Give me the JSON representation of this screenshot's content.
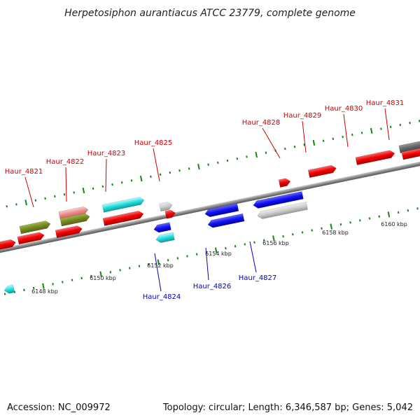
{
  "title": "Herpetosiphon aurantiacus ATCC 23779, complete genome",
  "footer": {
    "accession": "Accession: NC_009972",
    "summary": "Topology: circular; Length: 6,346,587 bp; Genes: 5,042"
  },
  "colors": {
    "forward_label": "#cc0000",
    "reverse_label": "#0000bb",
    "tick": "#118811",
    "backbone": "#888888"
  },
  "scale_labels": [
    "6148 kbp",
    "6150 kbp",
    "6152 kbp",
    "6154 kbp",
    "6156 kbp",
    "6158 kbp",
    "6160 kbp"
  ],
  "gene_labels_forward": [
    "Haur_4821",
    "Haur_4822",
    "Haur_4823",
    "Haur_4825",
    "Haur_4828",
    "Haur_4829",
    "Haur_4830",
    "Haur_4831"
  ],
  "gene_labels_reverse": [
    "Haur_4824",
    "Haur_4826",
    "Haur_4827"
  ]
}
